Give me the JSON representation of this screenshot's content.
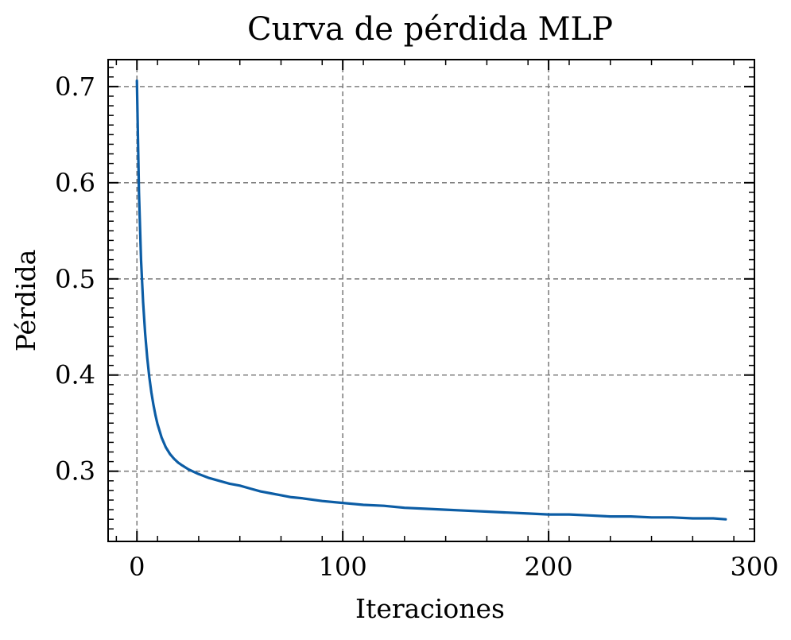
{
  "chart_data": {
    "type": "line",
    "title": "Curva de pérdida MLP",
    "xlabel": "Iteraciones",
    "ylabel": "Pérdida",
    "xlim": [
      -14,
      300
    ],
    "ylim": [
      0.227,
      0.728
    ],
    "xticks": [
      0,
      100,
      200,
      300
    ],
    "xtick_labels": [
      "0",
      "100",
      "200",
      "300"
    ],
    "yticks": [
      0.3,
      0.4,
      0.5,
      0.6,
      0.7
    ],
    "ytick_labels": [
      "0.3",
      "0.4",
      "0.5",
      "0.6",
      "0.7"
    ],
    "grid": true,
    "series": [
      {
        "color": "#0C5DA5",
        "x": [
          0,
          1,
          2,
          3,
          4,
          5,
          6,
          7,
          8,
          9,
          10,
          12,
          14,
          16,
          18,
          20,
          22,
          25,
          28,
          30,
          35,
          40,
          45,
          50,
          55,
          60,
          65,
          70,
          75,
          80,
          90,
          100,
          110,
          120,
          130,
          140,
          150,
          160,
          170,
          180,
          190,
          200,
          210,
          220,
          230,
          240,
          250,
          260,
          270,
          280,
          286
        ],
        "y": [
          0.706,
          0.59,
          0.52,
          0.476,
          0.443,
          0.418,
          0.398,
          0.382,
          0.369,
          0.358,
          0.349,
          0.335,
          0.325,
          0.318,
          0.313,
          0.309,
          0.306,
          0.302,
          0.299,
          0.297,
          0.293,
          0.29,
          0.287,
          0.285,
          0.282,
          0.279,
          0.277,
          0.275,
          0.273,
          0.272,
          0.269,
          0.267,
          0.265,
          0.264,
          0.262,
          0.261,
          0.26,
          0.259,
          0.258,
          0.257,
          0.256,
          0.255,
          0.255,
          0.254,
          0.253,
          0.253,
          0.252,
          0.252,
          0.251,
          0.251,
          0.25
        ]
      }
    ]
  }
}
